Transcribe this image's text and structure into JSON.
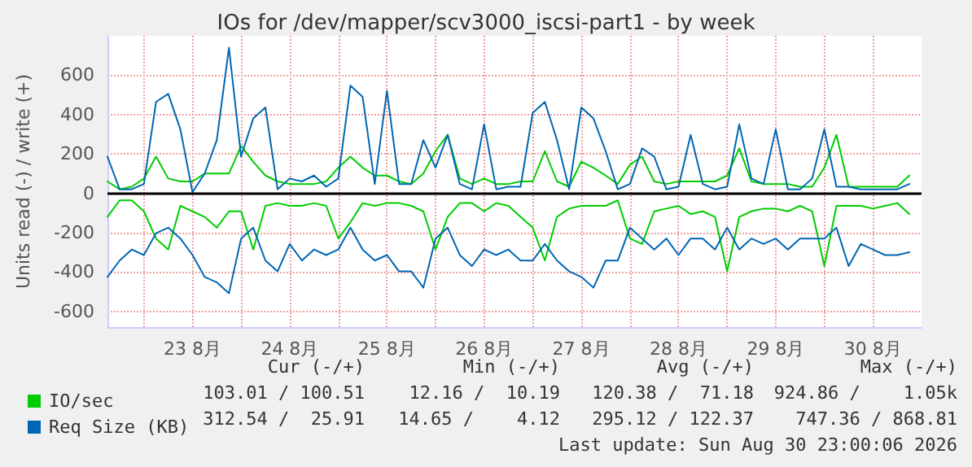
{
  "chart_data": {
    "type": "line",
    "title": "IOs for /dev/mapper/scv3000_iscsi-part1 - by week",
    "ylabel": "Units read (-) / write (+)",
    "x": [
      "2026-08-22T15:00",
      "2026-08-22T18:00",
      "2026-08-22T21:00",
      "2026-08-23T00:00",
      "2026-08-23T03:00",
      "2026-08-23T06:00",
      "2026-08-23T09:00",
      "2026-08-23T12:00",
      "2026-08-23T15:00",
      "2026-08-23T18:00",
      "2026-08-23T21:00",
      "2026-08-24T00:00",
      "2026-08-24T03:00",
      "2026-08-24T06:00",
      "2026-08-24T09:00",
      "2026-08-24T12:00",
      "2026-08-24T15:00",
      "2026-08-24T18:00",
      "2026-08-24T21:00",
      "2026-08-25T00:00",
      "2026-08-25T03:00",
      "2026-08-25T06:00",
      "2026-08-25T09:00",
      "2026-08-25T12:00",
      "2026-08-25T15:00",
      "2026-08-25T18:00",
      "2026-08-25T21:00",
      "2026-08-26T00:00",
      "2026-08-26T03:00",
      "2026-08-26T06:00",
      "2026-08-26T09:00",
      "2026-08-26T12:00",
      "2026-08-26T15:00",
      "2026-08-26T18:00",
      "2026-08-26T21:00",
      "2026-08-27T00:00",
      "2026-08-27T03:00",
      "2026-08-27T06:00",
      "2026-08-27T09:00",
      "2026-08-27T12:00",
      "2026-08-27T15:00",
      "2026-08-27T18:00",
      "2026-08-27T21:00",
      "2026-08-28T00:00",
      "2026-08-28T03:00",
      "2026-08-28T06:00",
      "2026-08-28T09:00",
      "2026-08-28T12:00",
      "2026-08-28T15:00",
      "2026-08-28T18:00",
      "2026-08-28T21:00",
      "2026-08-29T00:00",
      "2026-08-29T03:00",
      "2026-08-29T06:00",
      "2026-08-29T09:00",
      "2026-08-29T12:00",
      "2026-08-29T15:00",
      "2026-08-29T18:00",
      "2026-08-29T21:00",
      "2026-08-30T00:00",
      "2026-08-30T03:00",
      "2026-08-30T06:00",
      "2026-08-30T09:00",
      "2026-08-30T12:00",
      "2026-08-30T15:00",
      "2026-08-30T18:00",
      "2026-08-30T21:00"
    ],
    "series": [
      {
        "name": "IO/sec",
        "color": "#00cc00",
        "values": [
          60,
          20,
          33,
          75,
          186,
          75,
          60,
          60,
          100,
          100,
          100,
          240,
          160,
          90,
          60,
          47,
          47,
          47,
          60,
          130,
          186,
          130,
          90,
          90,
          60,
          47,
          100,
          214,
          297,
          75,
          47,
          75,
          47,
          47,
          60,
          60,
          214,
          60,
          33,
          160,
          130,
          90,
          47,
          145,
          186,
          60,
          47,
          60,
          60,
          60,
          60,
          90,
          228,
          60,
          47,
          47,
          47,
          33,
          33,
          130,
          297,
          33,
          33,
          33,
          33,
          33,
          90
        ]
      },
      {
        "color": "#00cc00",
        "values": [
          -120,
          -36,
          -36,
          -92,
          -230,
          -286,
          -64,
          -92,
          -120,
          -175,
          -92,
          -92,
          -286,
          -64,
          -50,
          -64,
          -64,
          -50,
          -64,
          -230,
          -147,
          -50,
          -64,
          -50,
          -50,
          -64,
          -92,
          -286,
          -120,
          -50,
          -50,
          -92,
          -50,
          -64,
          -120,
          -175,
          -342,
          -120,
          -78,
          -64,
          -64,
          -64,
          -36,
          -230,
          -258,
          -92,
          -78,
          -64,
          -106,
          -92,
          -120,
          -397,
          -120,
          -92,
          -78,
          -78,
          -92,
          -64,
          -92,
          -370,
          -64,
          -64,
          -64,
          -78,
          -64,
          -50,
          -106
        ]
      },
      {
        "name": "Req Size (KB)",
        "color": "#0066b3",
        "values": [
          186,
          20,
          20,
          47,
          464,
          505,
          325,
          5,
          100,
          270,
          740,
          186,
          380,
          436,
          20,
          75,
          60,
          90,
          33,
          75,
          547,
          490,
          47,
          520,
          47,
          47,
          270,
          130,
          297,
          47,
          20,
          350,
          20,
          33,
          33,
          408,
          464,
          270,
          20,
          436,
          380,
          214,
          20,
          47,
          228,
          186,
          20,
          33,
          297,
          47,
          20,
          33,
          350,
          75,
          47,
          325,
          20,
          20,
          75,
          325,
          33,
          33,
          20,
          20,
          20,
          20,
          47
        ]
      },
      {
        "color": "#0066b3",
        "values": [
          -425,
          -342,
          -286,
          -314,
          -203,
          -175,
          -230,
          -314,
          -425,
          -453,
          -508,
          -230,
          -175,
          -342,
          -397,
          -258,
          -342,
          -286,
          -314,
          -286,
          -175,
          -286,
          -342,
          -314,
          -397,
          -397,
          -480,
          -230,
          -175,
          -314,
          -370,
          -286,
          -314,
          -286,
          -342,
          -342,
          -258,
          -342,
          -397,
          -425,
          -480,
          -342,
          -342,
          -175,
          -230,
          -286,
          -230,
          -314,
          -230,
          -230,
          -286,
          -175,
          -286,
          -230,
          -258,
          -230,
          -286,
          -230,
          -230,
          -230,
          -175,
          -370,
          -258,
          -286,
          -314,
          -314,
          -300
        ]
      }
    ],
    "xlim": [
      "2026-08-22T15:00",
      "2026-08-31T00:00"
    ],
    "xticks": [
      {
        "value": "2026-08-23T00:00",
        "label": null
      },
      {
        "value": "2026-08-23T12:00",
        "label": "23 8月"
      },
      {
        "value": "2026-08-24T00:00",
        "label": null
      },
      {
        "value": "2026-08-24T12:00",
        "label": "24 8月"
      },
      {
        "value": "2026-08-25T00:00",
        "label": null
      },
      {
        "value": "2026-08-25T12:00",
        "label": "25 8月"
      },
      {
        "value": "2026-08-26T00:00",
        "label": null
      },
      {
        "value": "2026-08-26T12:00",
        "label": "26 8月"
      },
      {
        "value": "2026-08-27T00:00",
        "label": null
      },
      {
        "value": "2026-08-27T12:00",
        "label": "27 8月"
      },
      {
        "value": "2026-08-28T00:00",
        "label": null
      },
      {
        "value": "2026-08-28T12:00",
        "label": "28 8月"
      },
      {
        "value": "2026-08-29T00:00",
        "label": null
      },
      {
        "value": "2026-08-29T12:00",
        "label": "29 8月"
      },
      {
        "value": "2026-08-30T00:00",
        "label": null
      },
      {
        "value": "2026-08-30T12:00",
        "label": "30 8月"
      }
    ],
    "ylim": [
      -680,
      800
    ],
    "yticks": [
      -600,
      -400,
      -200,
      0,
      200,
      400,
      600
    ],
    "ref_lines": [
      {
        "axis": "y",
        "value": 0,
        "color": "#000000"
      }
    ],
    "grid": true,
    "legend": "bottom left",
    "marker": "none",
    "line_style": "solid",
    "annotations": [
      "Cur (-/+)",
      "Min (-/+)",
      "Avg (-/+)",
      "Max (-/+)",
      "103.01 / 100.51",
      "12.16 /  10.19",
      "120.38 /  71.18",
      "924.86 /    1.05k",
      "312.54 /  25.91",
      "14.65 /    4.12",
      "295.12 / 122.37",
      "747.36 / 868.81",
      "Last update: Sun Aug 30 23:00:06 2026"
    ]
  }
}
